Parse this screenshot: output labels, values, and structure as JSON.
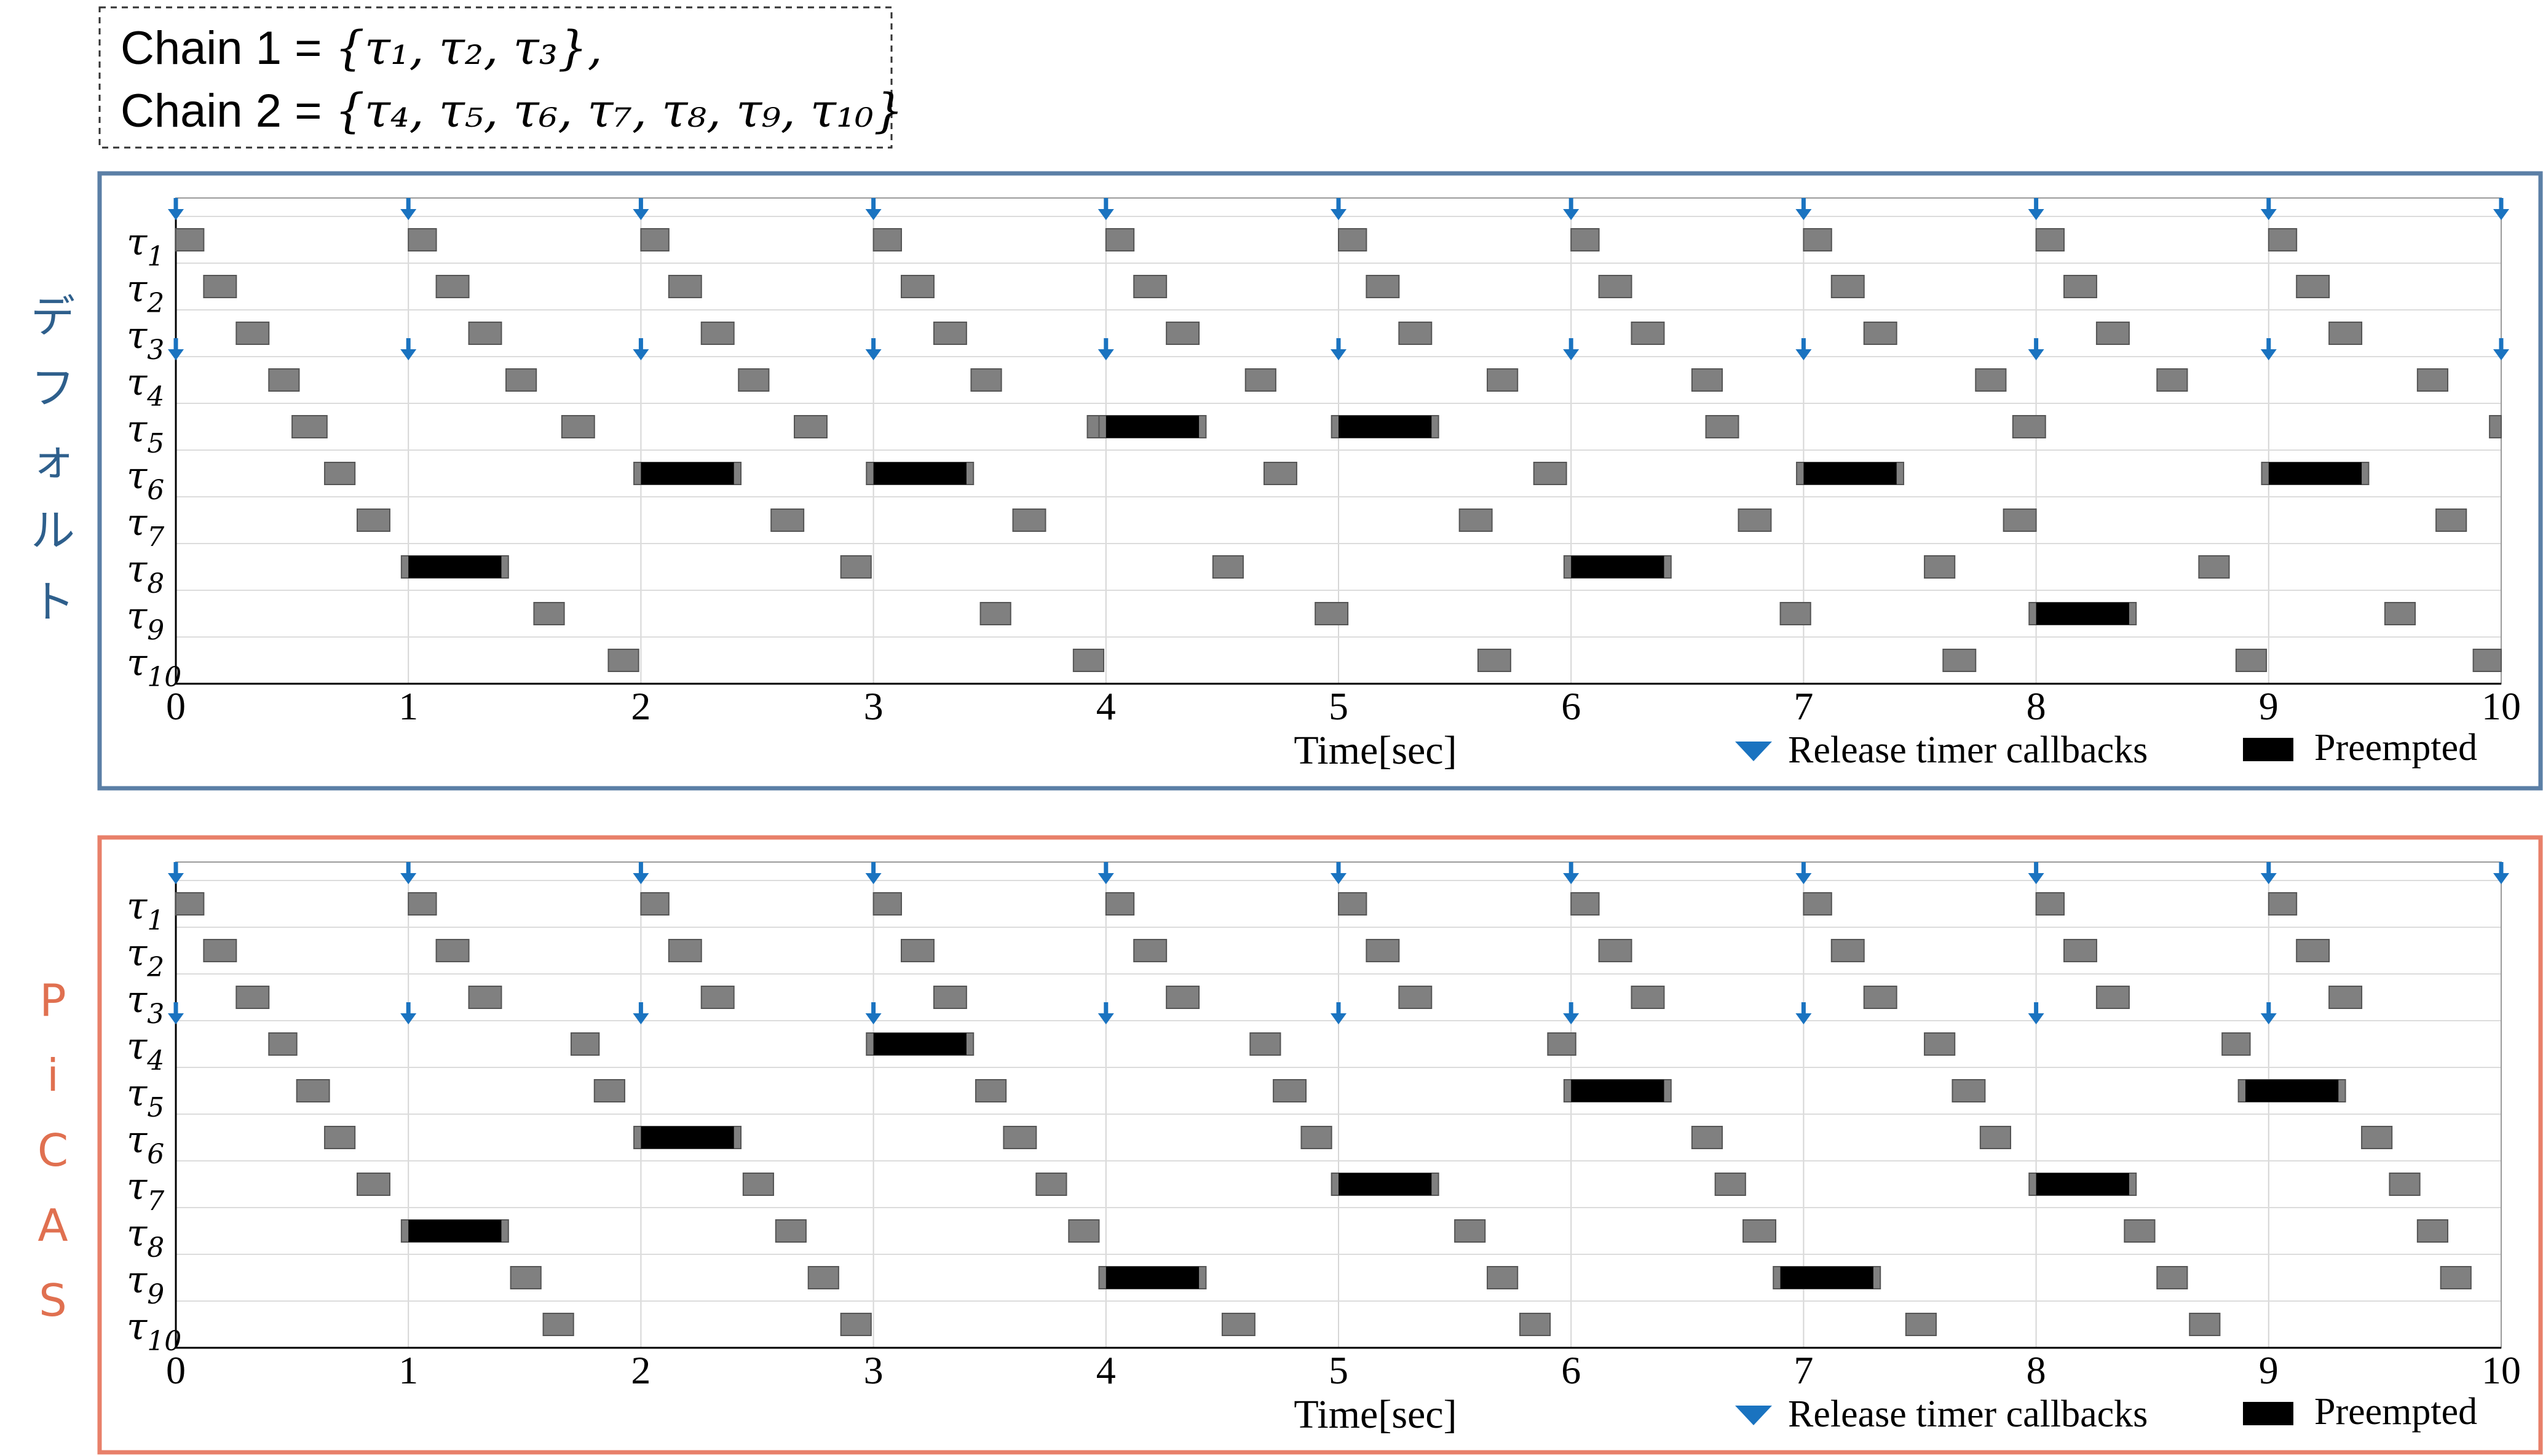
{
  "header": {
    "chain1_label": "Chain 1 = ",
    "chain1_set": "{τ₁, τ₂, τ₃},",
    "chain2_label": "Chain 2 = ",
    "chain2_set": "{τ₄, τ₅, τ₆, τ₇, τ₈, τ₉, τ₁₀}"
  },
  "colors": {
    "default_frame": "#5b7fa6",
    "picas_frame": "#e8806a",
    "default_label": "#2e5f8c",
    "picas_label": "#e07050",
    "release_arrow": "#1a73c0",
    "execution": "#808080",
    "preempted": "#000000"
  },
  "chart_data": [
    {
      "type": "timeline",
      "panel_label": "デフォルト",
      "xlabel": "Time[sec]",
      "xlim": [
        0,
        10
      ],
      "x_ticks": [
        "0",
        "1",
        "2",
        "3",
        "4",
        "5",
        "6",
        "7",
        "8",
        "9",
        "10"
      ],
      "tasks": [
        "τ1",
        "τ2",
        "τ3",
        "τ4",
        "τ5",
        "τ6",
        "τ7",
        "τ8",
        "τ9",
        "τ10"
      ],
      "legend": {
        "release": "Release timer callbacks",
        "preempted": "Preempted"
      },
      "release_times": {
        "chain1": [
          0,
          1,
          2,
          3,
          4,
          5,
          6,
          7,
          8,
          9,
          10
        ],
        "chain2": [
          0,
          1,
          2,
          3,
          4,
          5,
          6,
          7,
          8,
          9,
          10
        ]
      },
      "jobs": {
        "τ1": [
          [
            0,
            0.12
          ],
          [
            1,
            0.12
          ],
          [
            2,
            0.12
          ],
          [
            3,
            0.12
          ],
          [
            4,
            0.12
          ],
          [
            5,
            0.12
          ],
          [
            6,
            0.12
          ],
          [
            7,
            0.12
          ],
          [
            8,
            0.12
          ],
          [
            9,
            0.12
          ]
        ],
        "τ2": [
          [
            0.12,
            0.14
          ],
          [
            1.12,
            0.14
          ],
          [
            2.12,
            0.14
          ],
          [
            3.12,
            0.14
          ],
          [
            4.12,
            0.14
          ],
          [
            5.12,
            0.14
          ],
          [
            6.12,
            0.14
          ],
          [
            7.12,
            0.14
          ],
          [
            8.12,
            0.14
          ],
          [
            9.12,
            0.14
          ]
        ],
        "τ3": [
          [
            0.26,
            0.14
          ],
          [
            1.26,
            0.14
          ],
          [
            2.26,
            0.14
          ],
          [
            3.26,
            0.14
          ],
          [
            4.26,
            0.14
          ],
          [
            5.26,
            0.14
          ],
          [
            6.26,
            0.14
          ],
          [
            7.26,
            0.14
          ],
          [
            8.26,
            0.14
          ],
          [
            9.26,
            0.14
          ]
        ],
        "τ4": [
          [
            0.4,
            0.13
          ],
          [
            1.42,
            0.13
          ],
          [
            2.42,
            0.13
          ],
          [
            3.42,
            0.13
          ],
          [
            4.6,
            0.13
          ],
          [
            5.64,
            0.13
          ],
          [
            6.52,
            0.13
          ],
          [
            7.74,
            0.13
          ],
          [
            8.52,
            0.13
          ],
          [
            9.64,
            0.13
          ]
        ],
        "τ5": [
          [
            0.5,
            0.15
          ],
          [
            1.66,
            0.14
          ],
          [
            2.66,
            0.14
          ],
          [
            3.92,
            0.14
          ],
          [
            4,
            0.4,
            "p"
          ],
          [
            5,
            0.4,
            "p"
          ],
          [
            6.58,
            0.14
          ],
          [
            7.9,
            0.14
          ],
          [
            9.95,
            0.05
          ]
        ],
        "τ6": [
          [
            0.64,
            0.13
          ],
          [
            2,
            0.4,
            "p"
          ],
          [
            3,
            0.4,
            "p"
          ],
          [
            4.68,
            0.14
          ],
          [
            5.84,
            0.14
          ],
          [
            7,
            0.4,
            "p"
          ],
          [
            9,
            0.4,
            "p"
          ]
        ],
        "τ7": [
          [
            0.78,
            0.14
          ],
          [
            2.56,
            0.14
          ],
          [
            3.6,
            0.14
          ],
          [
            5.52,
            0.14
          ],
          [
            6.72,
            0.14
          ],
          [
            7.86,
            0.14
          ],
          [
            9.72,
            0.13
          ]
        ],
        "τ8": [
          [
            1,
            0.4,
            "p"
          ],
          [
            2.86,
            0.13
          ],
          [
            4.46,
            0.13
          ],
          [
            6,
            0.4,
            "p"
          ],
          [
            7.52,
            0.13
          ],
          [
            8.7,
            0.13
          ]
        ],
        "τ9": [
          [
            1.54,
            0.13
          ],
          [
            3.46,
            0.13
          ],
          [
            4.9,
            0.14
          ],
          [
            6.9,
            0.13
          ],
          [
            8,
            0.4,
            "p"
          ],
          [
            9.5,
            0.13
          ]
        ],
        "τ10": [
          [
            1.86,
            0.13
          ],
          [
            3.86,
            0.13
          ],
          [
            5.6,
            0.14
          ],
          [
            7.6,
            0.14
          ],
          [
            8.86,
            0.13
          ],
          [
            9.88,
            0.12
          ]
        ]
      }
    },
    {
      "type": "timeline",
      "panel_label": "PiCAS",
      "xlabel": "Time[sec]",
      "xlim": [
        0,
        10
      ],
      "x_ticks": [
        "0",
        "1",
        "2",
        "3",
        "4",
        "5",
        "6",
        "7",
        "8",
        "9",
        "10"
      ],
      "tasks": [
        "τ1",
        "τ2",
        "τ3",
        "τ4",
        "τ5",
        "τ6",
        "τ7",
        "τ8",
        "τ9",
        "τ10"
      ],
      "legend": {
        "release": "Release timer callbacks",
        "preempted": "Preempted"
      },
      "release_times": {
        "chain1": [
          0,
          1,
          2,
          3,
          4,
          5,
          6,
          7,
          8,
          9,
          10
        ],
        "chain2": [
          0,
          1,
          2,
          3,
          4,
          5,
          6,
          7,
          8,
          9
        ]
      },
      "jobs": {
        "τ1": [
          [
            0,
            0.12
          ],
          [
            1,
            0.12
          ],
          [
            2,
            0.12
          ],
          [
            3,
            0.12
          ],
          [
            4,
            0.12
          ],
          [
            5,
            0.12
          ],
          [
            6,
            0.12
          ],
          [
            7,
            0.12
          ],
          [
            8,
            0.12
          ],
          [
            9,
            0.12
          ]
        ],
        "τ2": [
          [
            0.12,
            0.14
          ],
          [
            1.12,
            0.14
          ],
          [
            2.12,
            0.14
          ],
          [
            3.12,
            0.14
          ],
          [
            4.12,
            0.14
          ],
          [
            5.12,
            0.14
          ],
          [
            6.12,
            0.14
          ],
          [
            7.12,
            0.14
          ],
          [
            8.12,
            0.14
          ],
          [
            9.12,
            0.14
          ]
        ],
        "τ3": [
          [
            0.26,
            0.14
          ],
          [
            1.26,
            0.14
          ],
          [
            2.26,
            0.14
          ],
          [
            3.26,
            0.14
          ],
          [
            4.26,
            0.14
          ],
          [
            5.26,
            0.14
          ],
          [
            6.26,
            0.14
          ],
          [
            7.26,
            0.14
          ],
          [
            8.26,
            0.14
          ],
          [
            9.26,
            0.14
          ]
        ],
        "τ4": [
          [
            0.4,
            0.12
          ],
          [
            1.7,
            0.12
          ],
          [
            3,
            0.4,
            "p"
          ],
          [
            4.62,
            0.13
          ],
          [
            5.9,
            0.12
          ],
          [
            7.52,
            0.13
          ],
          [
            8.8,
            0.12
          ]
        ],
        "τ5": [
          [
            0.52,
            0.14
          ],
          [
            1.8,
            0.13
          ],
          [
            3.44,
            0.13
          ],
          [
            4.72,
            0.14
          ],
          [
            6,
            0.4,
            "p"
          ],
          [
            7.64,
            0.14
          ],
          [
            8.9,
            0.4,
            "p"
          ]
        ],
        "τ6": [
          [
            0.64,
            0.13
          ],
          [
            2,
            0.4,
            "p"
          ],
          [
            3.56,
            0.14
          ],
          [
            4.84,
            0.13
          ],
          [
            6.52,
            0.13
          ],
          [
            7.76,
            0.13
          ],
          [
            9.4,
            0.13
          ]
        ],
        "τ7": [
          [
            0.78,
            0.14
          ],
          [
            2.44,
            0.13
          ],
          [
            3.7,
            0.13
          ],
          [
            5,
            0.4,
            "p"
          ],
          [
            6.62,
            0.13
          ],
          [
            8,
            0.4,
            "p"
          ],
          [
            9.52,
            0.13
          ]
        ],
        "τ8": [
          [
            1,
            0.4,
            "p"
          ],
          [
            2.58,
            0.13
          ],
          [
            3.84,
            0.13
          ],
          [
            5.5,
            0.13
          ],
          [
            6.74,
            0.14
          ],
          [
            8.38,
            0.13
          ],
          [
            9.64,
            0.13
          ]
        ],
        "τ9": [
          [
            1.44,
            0.13
          ],
          [
            2.72,
            0.13
          ],
          [
            4,
            0.4,
            "p"
          ],
          [
            5.64,
            0.13
          ],
          [
            6.9,
            0.4,
            "p"
          ],
          [
            8.52,
            0.13
          ],
          [
            9.74,
            0.13
          ]
        ],
        "τ10": [
          [
            1.58,
            0.13
          ],
          [
            2.86,
            0.13
          ],
          [
            4.5,
            0.14
          ],
          [
            5.78,
            0.13
          ],
          [
            7.44,
            0.13
          ],
          [
            8.66,
            0.13
          ]
        ]
      }
    }
  ]
}
